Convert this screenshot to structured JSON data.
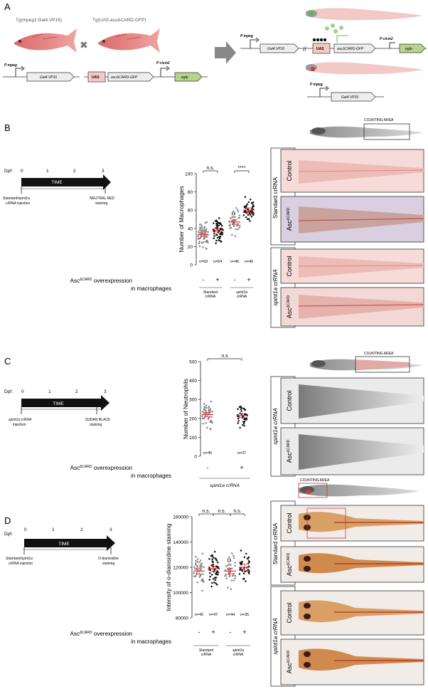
{
  "panels": {
    "A": {
      "letter": "A",
      "left_fish_label": "Tg(mpeg1:Gal4.VP16)",
      "right_fish_label": "Tg(UAS:ascΔCARD-GFP)",
      "promoter_mpeg": "P mpeg",
      "promoter_clcm2": "P clcm2",
      "gal4": "Gal4.VP16",
      "uas": "UAS",
      "asc_gfp": "ascΔCARD-GFP",
      "egfp": "egfp"
    },
    "B": {
      "letter": "B",
      "dpf": "Dpf:",
      "time_label": "TIME",
      "ticks": [
        "0",
        "1",
        "2",
        "3"
      ],
      "start_note_1": "Standard/spint1a",
      "start_note_2": "crRNA injection",
      "end_note_1": "NEUTRAL RED",
      "end_note_2": "staining",
      "counting_area": "COUNTING AREA",
      "overexpression_label": "overexpression",
      "in_macrophages": "in macrophages",
      "asc": "Asc",
      "asc_sup": "ΔCARD",
      "group_standard": [
        "Standard",
        "crRNA"
      ],
      "group_spint": [
        "spint1a",
        "crRNA"
      ],
      "signs": [
        "-",
        "+",
        "-",
        "+"
      ],
      "side_label_top": "Standard crRNA",
      "side_label_bottom": "spint1a crRNA",
      "row_labels": [
        "Control",
        "Asc",
        "Control",
        "Asc"
      ]
    },
    "C": {
      "letter": "C",
      "dpf": "Dpf:",
      "time_label": "TIME",
      "ticks": [
        "0",
        "1",
        "2",
        "3"
      ],
      "start_note_1": "spint1a crRNA",
      "start_note_2": "injection",
      "end_note_1": "SUDAN BLACK",
      "end_note_2": "staining",
      "counting_area": "COUNTING AREA",
      "signs": [
        "-",
        "+"
      ],
      "group": "spint1a crRNA",
      "side_label": "spint1a crRNA",
      "row_labels": [
        "Control",
        "Asc"
      ]
    },
    "D": {
      "letter": "D",
      "dpf": "Dpf:",
      "time_label": "TIME",
      "ticks": [
        "0",
        "1",
        "2",
        "3"
      ],
      "start_note_1": "Standard/spint1a",
      "start_note_2": "crRNA injection",
      "end_note_1": "O-dianisidine",
      "end_note_2": "staining",
      "counting_area": "COUNTING AREA",
      "signs": [
        "-",
        "+",
        "-",
        "+"
      ],
      "group_standard": [
        "Standard",
        "crRNA"
      ],
      "group_spint": [
        "spint1a",
        "crRNA"
      ],
      "side_label_top": "Standard crRNA",
      "side_label_bottom": "spint1a crRNA",
      "row_labels": [
        "Control",
        "Asc",
        "Control",
        "Asc"
      ]
    }
  },
  "chart_data": [
    {
      "type": "scatter",
      "ylabel": "Number of Macrophages",
      "ylim": [
        0,
        100
      ],
      "yticks": [
        0,
        20,
        40,
        60,
        80,
        100
      ],
      "categories": [
        "Standard -",
        "Standard +",
        "spint1a -",
        "spint1a +"
      ],
      "n_labels": [
        "n=59",
        "n=54",
        "n=46",
        "n=46"
      ],
      "means": [
        33,
        38,
        47,
        60
      ],
      "spread": [
        12,
        11,
        13,
        13
      ],
      "counts": [
        59,
        54,
        46,
        46
      ],
      "colors": [
        "#888888",
        "#111111",
        "#888888",
        "#111111"
      ],
      "significance": [
        {
          "from": 0,
          "to": 1,
          "label": "n.s."
        },
        {
          "from": 2,
          "to": 3,
          "label": "****"
        }
      ]
    },
    {
      "type": "scatter",
      "ylabel": "Number of Neutrophils",
      "ylim": [
        0,
        500
      ],
      "yticks": [
        0,
        100,
        200,
        300,
        400,
        500
      ],
      "categories": [
        "spint1a -",
        "spint1a +"
      ],
      "n_labels": [
        "n=45",
        "n=37"
      ],
      "means": [
        220,
        215
      ],
      "spread": [
        60,
        50
      ],
      "counts": [
        45,
        37
      ],
      "colors": [
        "#888888",
        "#111111"
      ],
      "significance": [
        {
          "from": 0,
          "to": 1,
          "label": "n.s"
        }
      ]
    },
    {
      "type": "scatter",
      "ylabel": "Intensity of o-dianisidine staining",
      "ylim": [
        80000,
        160000
      ],
      "yticks": [
        80000,
        100000,
        120000,
        140000,
        160000
      ],
      "categories": [
        "Standard -",
        "Standard +",
        "spint1a -",
        "spint1a +"
      ],
      "n_labels": [
        "n=42",
        "n=47",
        "n=44",
        "n=35"
      ],
      "means": [
        117000,
        119000,
        117000,
        120000
      ],
      "spread": [
        12000,
        11000,
        12000,
        12000
      ],
      "counts": [
        42,
        47,
        44,
        35
      ],
      "colors": [
        "#888888",
        "#111111",
        "#888888",
        "#111111"
      ],
      "significance": [
        {
          "from": 0,
          "to": 1,
          "label": "n.s."
        },
        {
          "from": 1,
          "to": 2,
          "label": "n.s."
        },
        {
          "from": 2,
          "to": 3,
          "label": "n.s."
        }
      ]
    }
  ]
}
